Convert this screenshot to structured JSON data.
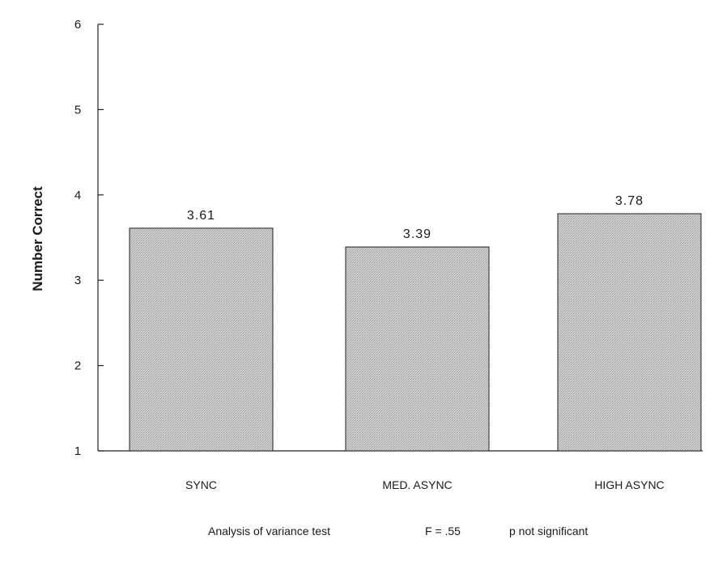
{
  "chart_data": {
    "type": "bar",
    "categories": [
      "SYNC",
      "MED. ASYNC",
      "HIGH ASYNC"
    ],
    "values": [
      3.61,
      3.39,
      3.78
    ],
    "data_labels": [
      "3.61",
      "3.39",
      "3.78"
    ],
    "ylabel": "Number Correct",
    "xlabel": "",
    "ylim": [
      1,
      6
    ],
    "yticks": [
      1,
      2,
      3,
      4,
      5,
      6
    ],
    "bar_color": "#c8c8c8",
    "grid": false,
    "legend": "none"
  },
  "footnote": {
    "test": "Analysis of variance test",
    "f_value": "F = .55",
    "significance": "p not significant"
  }
}
